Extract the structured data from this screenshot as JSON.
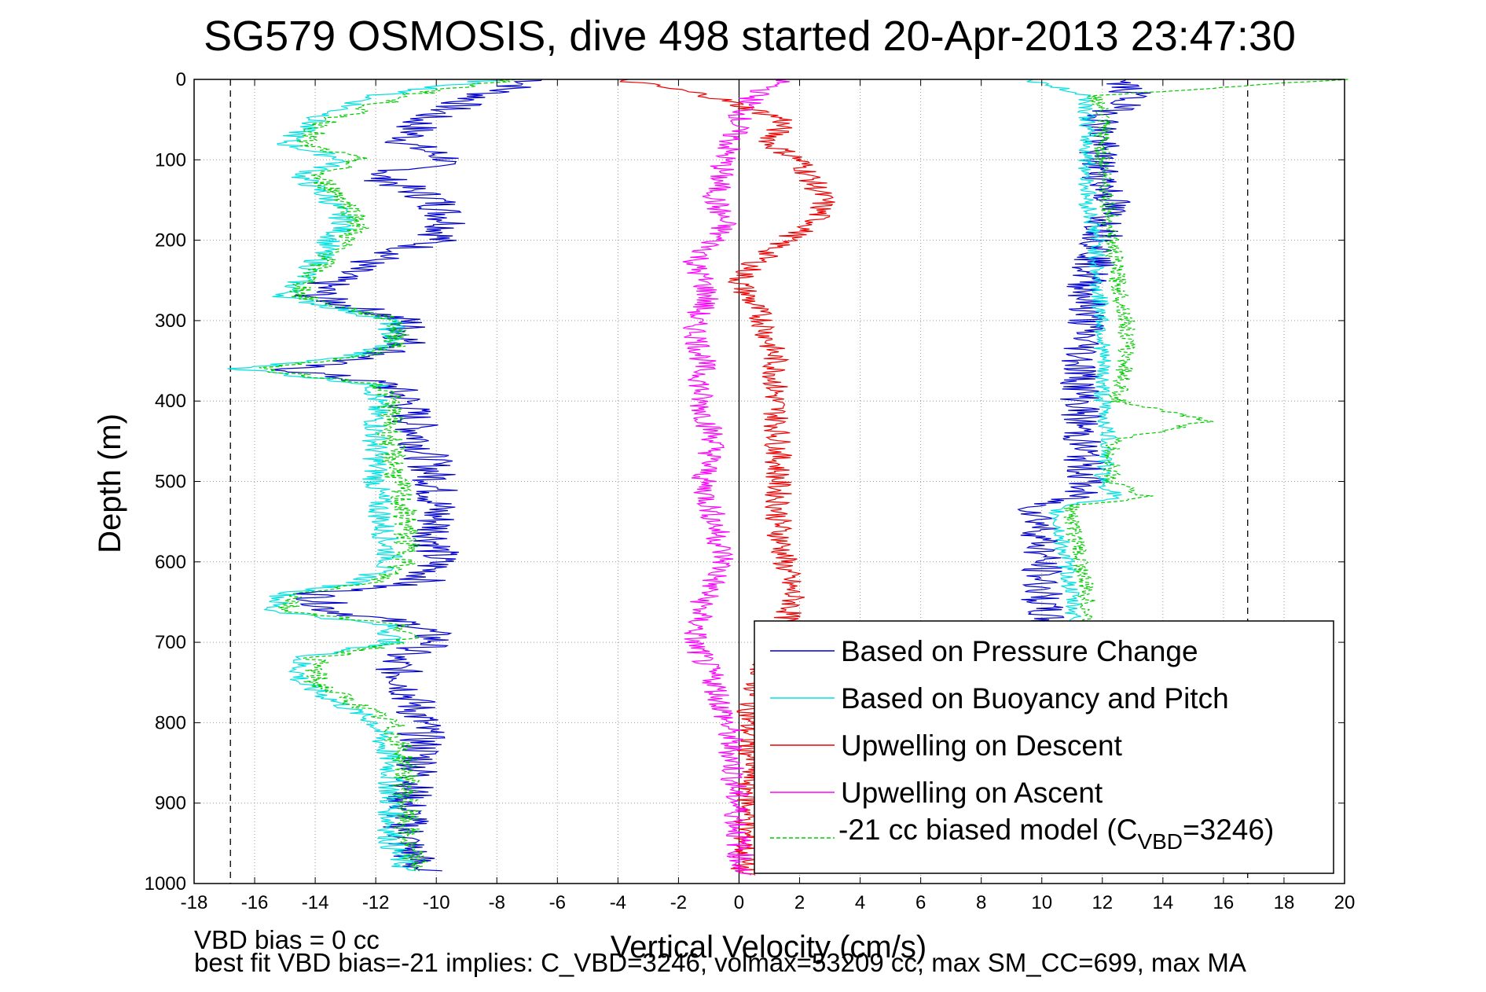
{
  "chart_data": {
    "type": "line",
    "title": "SG579 OSMOSIS, dive 498 started 20-Apr-2013 23:47:30",
    "xlabel": "Vertical Velocity (cm/s)",
    "ylabel": "Depth (m)",
    "xlim": [
      -18,
      20
    ],
    "ylim": [
      0,
      1000
    ],
    "y_reversed": true,
    "grid": true,
    "x_ticks": [
      -18,
      -16,
      -14,
      -12,
      -10,
      -8,
      -6,
      -4,
      -2,
      0,
      2,
      4,
      6,
      8,
      10,
      12,
      14,
      16,
      18,
      20
    ],
    "y_ticks": [
      0,
      100,
      200,
      300,
      400,
      500,
      600,
      700,
      800,
      900,
      1000
    ],
    "vertical_reference_lines": [
      -16.8,
      0,
      16.8
    ],
    "legend_position": "bottom-right",
    "series": [
      {
        "name": "Based on Pressure Change",
        "color": "#0000cc",
        "depth": [
          0,
          20,
          50,
          80,
          100,
          120,
          150,
          180,
          200,
          230,
          250,
          270,
          300,
          330,
          345,
          360,
          380,
          400,
          450,
          500,
          550,
          600,
          625,
          640,
          660,
          680,
          700,
          720,
          750,
          800,
          850,
          900,
          950,
          985
        ],
        "values": [
          -6.5,
          -8.5,
          -10.5,
          -11.0,
          -9.5,
          -12.0,
          -10.0,
          -9.5,
          -10.0,
          -12.5,
          -13.5,
          -14.0,
          -11.0,
          -11.0,
          -12.0,
          -15.0,
          -11.5,
          -11.0,
          -10.5,
          -10.0,
          -10.0,
          -10.0,
          -10.5,
          -14.0,
          -13.5,
          -10.5,
          -10.0,
          -11.5,
          -11.0,
          -10.5,
          -10.5,
          -11.0,
          -11.0,
          -10.5
        ]
      },
      {
        "name": "Based on Buoyancy and Pitch",
        "color": "#00e0e0",
        "depth": [
          0,
          20,
          50,
          80,
          100,
          120,
          150,
          180,
          200,
          230,
          250,
          270,
          300,
          330,
          345,
          360,
          380,
          400,
          450,
          500,
          550,
          600,
          625,
          640,
          660,
          680,
          700,
          720,
          750,
          800,
          850,
          900,
          950,
          985
        ],
        "values": [
          -8.0,
          -12.0,
          -14.0,
          -15.0,
          -13.0,
          -14.5,
          -13.5,
          -13.0,
          -13.5,
          -14.0,
          -14.5,
          -15.0,
          -11.5,
          -11.5,
          -13.0,
          -16.5,
          -12.0,
          -12.0,
          -12.0,
          -12.0,
          -11.8,
          -11.5,
          -12.5,
          -15.0,
          -15.5,
          -11.5,
          -11.5,
          -14.5,
          -14.5,
          -12.0,
          -11.5,
          -11.5,
          -11.5,
          -11.0
        ]
      },
      {
        "name": "Upwelling on Descent",
        "color": "#ee0000",
        "depth": [
          0,
          20,
          50,
          80,
          100,
          150,
          180,
          200,
          230,
          250,
          270,
          300,
          350,
          400,
          450,
          500,
          550,
          600,
          650,
          700,
          750,
          800,
          850,
          900,
          950,
          990
        ],
        "values": [
          -4.0,
          -1.0,
          1.5,
          1.0,
          2.0,
          2.8,
          2.5,
          1.5,
          0.5,
          0.0,
          0.3,
          0.8,
          1.2,
          1.2,
          1.3,
          1.3,
          1.3,
          1.5,
          1.8,
          1.2,
          0.6,
          0.3,
          0.4,
          0.3,
          0.2,
          0.1
        ]
      },
      {
        "name": "Upwelling on Ascent",
        "color": "#ff00ff",
        "depth": [
          0,
          20,
          50,
          80,
          100,
          150,
          180,
          200,
          230,
          250,
          270,
          300,
          350,
          400,
          450,
          500,
          550,
          600,
          650,
          700,
          750,
          800,
          850,
          900,
          950,
          990
        ],
        "values": [
          1.5,
          0.5,
          0.0,
          -0.3,
          -0.5,
          -0.8,
          -0.5,
          -0.8,
          -1.5,
          -1.2,
          -1.0,
          -1.5,
          -1.2,
          -1.3,
          -0.8,
          -1.2,
          -0.8,
          -0.5,
          -1.2,
          -1.5,
          -0.8,
          -0.4,
          -0.2,
          -0.1,
          0.0,
          0.1
        ]
      },
      {
        "name": "-21 cc biased model (C_VBD=3246)",
        "color": "#00cc00",
        "dashed": true,
        "depth": [
          0,
          20,
          50,
          80,
          100,
          120,
          150,
          180,
          200,
          230,
          250,
          270,
          300,
          330,
          345,
          360,
          380,
          400,
          450,
          500,
          550,
          600,
          625,
          640,
          660,
          680,
          700,
          720,
          750,
          800,
          850,
          900,
          950,
          985
        ],
        "values": [
          -7.5,
          -11.0,
          -13.5,
          -14.5,
          -12.5,
          -14.0,
          -13.0,
          -12.5,
          -13.0,
          -13.8,
          -14.3,
          -14.5,
          -11.3,
          -11.3,
          -12.5,
          -16.0,
          -11.8,
          -11.5,
          -11.5,
          -11.3,
          -11.0,
          -11.0,
          -12.0,
          -14.5,
          -15.0,
          -11.0,
          -11.0,
          -14.0,
          -14.0,
          -11.5,
          -11.0,
          -11.0,
          -11.0,
          -10.5
        ]
      }
    ],
    "ascent_series": [
      {
        "name": "Based on Pressure Change",
        "color": "#0000cc",
        "depth": [
          0,
          20,
          50,
          100,
          150,
          200,
          250,
          300,
          350,
          400,
          450,
          500,
          520,
          530,
          550,
          600,
          650,
          700
        ],
        "values": [
          12.5,
          13.0,
          12.0,
          11.8,
          12.3,
          12.0,
          11.5,
          11.5,
          11.3,
          11.3,
          11.3,
          11.5,
          11.0,
          9.8,
          10.0,
          10.0,
          10.0,
          10.2
        ]
      },
      {
        "name": "Based on Buoyancy and Pitch",
        "color": "#00e0e0",
        "depth": [
          0,
          20,
          50,
          100,
          150,
          200,
          250,
          300,
          350,
          400,
          450,
          500,
          520,
          530,
          550,
          600,
          650,
          700
        ],
        "values": [
          9.5,
          11.5,
          11.5,
          11.5,
          11.5,
          11.8,
          11.8,
          12.0,
          12.0,
          12.0,
          12.2,
          12.0,
          12.5,
          10.5,
          10.5,
          10.8,
          11.0,
          11.2
        ]
      },
      {
        "name": "-21 cc biased model (C_VBD=3246)",
        "color": "#00cc00",
        "dashed": true,
        "depth": [
          0,
          20,
          50,
          100,
          150,
          200,
          250,
          300,
          350,
          400,
          425,
          450,
          500,
          520,
          530,
          550,
          600,
          650,
          700
        ],
        "values": [
          20.0,
          11.8,
          12.0,
          12.0,
          12.2,
          12.3,
          12.5,
          12.8,
          12.8,
          12.5,
          15.5,
          12.3,
          12.3,
          13.5,
          11.0,
          11.0,
          11.3,
          11.5,
          11.5
        ]
      }
    ]
  },
  "legend": {
    "entries": [
      "Based on Pressure Change",
      "Based on Buoyancy and Pitch",
      "Upwelling on Descent",
      "Upwelling on Ascent"
    ],
    "model_prefix": "-21 cc biased model (C",
    "model_subscript": "VBD",
    "model_suffix": "=3246)"
  },
  "notes": {
    "line1": "VBD bias = 0 cc",
    "line2": "best fit VBD bias=-21 implies: C_VBD=3246, volmax=53209 cc, max SM_CC=699, max MA"
  }
}
